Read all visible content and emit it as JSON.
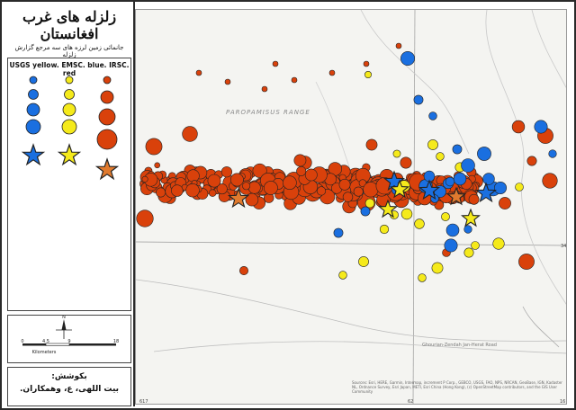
{
  "title": {
    "main": "زلزله های غرب افغانستان",
    "subtitle": "جانمائی زمین لرزه های سه مرجع گزارش زلزله",
    "sources_line": "USGS yellow. EMSC. blue. IRSC. red"
  },
  "credit": {
    "label": "بکوشش:",
    "authors": "بیت اللهی، ع، وهمکاران."
  },
  "scale": {
    "ticks": [
      "0",
      "4.5",
      "9",
      "18"
    ],
    "unit": "Kilometers",
    "north_label": "N"
  },
  "map": {
    "place_label": "PAROPAMISUS RANGE",
    "road_label": "Ghourian-Zendah Jan-Herat Road",
    "tick_labels": [
      "617",
      "62",
      "16",
      "34"
    ],
    "attribution": "Sources: Esri, HERE, Garmin, Intermap, increment P Corp., GEBCO, USGS, FAO, NPS, NRCAN, GeoBase, IGN, Kadaster NL, Ordnance Survey, Esri Japan, METI, Esri China (Hong Kong), (c) OpenStreetMap contributors, and the GIS User Community"
  },
  "colors": {
    "usgs": "#f5ea1b",
    "emsc": "#1a6fe0",
    "irsc": "#d9410b",
    "outline": "#222222",
    "basemap": "#f4f4f1"
  },
  "legend": {
    "magnitude_classes": 4,
    "symbols": [
      "circle-blue",
      "circle-yellow",
      "circle-red",
      "star-blue",
      "star-yellow",
      "star-orange"
    ]
  }
}
